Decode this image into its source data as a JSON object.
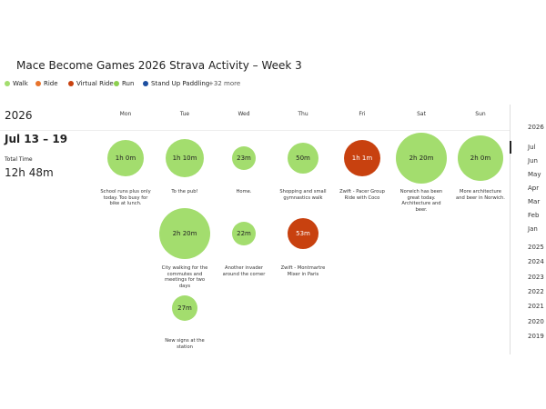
{
  "header": {
    "title": "Mace Become Games 2026 Strava Activity – Week 3"
  },
  "legend": [
    {
      "label": "Walk",
      "color": "#a3dd6e"
    },
    {
      "label": "Ride",
      "color": "#e8742c"
    },
    {
      "label": "Virtual Ride",
      "color": "#c8410f"
    },
    {
      "label": "Run",
      "color": "#8ccf4f"
    },
    {
      "label": "Stand Up Paddling",
      "color": "#1d4fa0"
    }
  ],
  "legend_more": "+32 more",
  "summary": {
    "year": "2026",
    "week": "Jul 13 – 19",
    "total_label": "Total Time",
    "total": "12h 48m"
  },
  "days": [
    "Mon",
    "Tue",
    "Wed",
    "Thu",
    "Fri",
    "Sat",
    "Sun"
  ],
  "activities": [
    {
      "duration": "1h 0m",
      "caption": "School runs plus only today. Too busy for bike at lunch.",
      "color": "#a3dd6e"
    },
    {
      "duration": "1h 10m",
      "caption": "To the pub!",
      "color": "#a3dd6e"
    },
    {
      "duration": "2h 20m",
      "caption": "City walking for the commutes and meetings for two days",
      "color": "#a3dd6e"
    },
    {
      "duration": "27m",
      "caption": "New signs at the station",
      "color": "#a3dd6e"
    },
    {
      "duration": "23m",
      "caption": "Home.",
      "color": "#a3dd6e"
    },
    {
      "duration": "22m",
      "caption": "Another invader around the corner",
      "color": "#a3dd6e"
    },
    {
      "duration": "50m",
      "caption": "Shopping and small gymnastics walk",
      "color": "#a3dd6e"
    },
    {
      "duration": "53m",
      "caption": "Zwift - Montmartre Mixer in Paris",
      "color": "#c8410f"
    },
    {
      "duration": "1h 1m",
      "caption": "Zwift - Pacer Group Ride with Coco",
      "color": "#c8410f"
    },
    {
      "duration": "2h 20m",
      "caption": "Norwich has been great today. Architecture and beer.",
      "color": "#a3dd6e"
    },
    {
      "duration": "2h 0m",
      "caption": "More architecture and beer in Norwich.",
      "color": "#a3dd6e"
    }
  ],
  "timeline": {
    "year": "2026",
    "months": [
      "Jul",
      "Jun",
      "May",
      "Apr",
      "Mar",
      "Feb",
      "Jan"
    ],
    "years": [
      "2025",
      "2024",
      "2023",
      "2022",
      "2021",
      "2020",
      "2019"
    ]
  }
}
